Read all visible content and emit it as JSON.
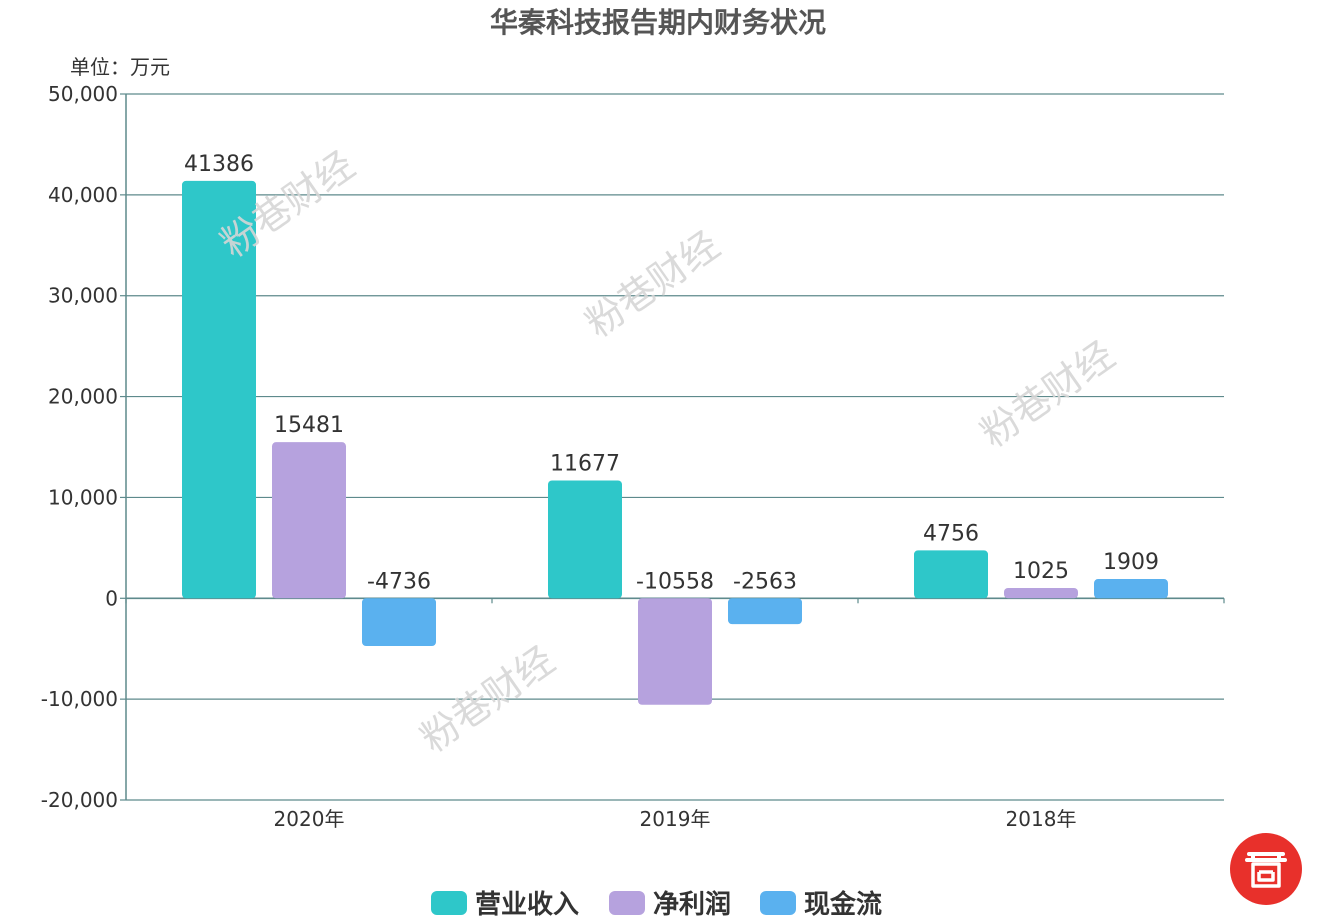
{
  "chart_data": {
    "type": "bar",
    "title": "华秦科技报告期内财务状况",
    "unit_label": "单位：万元",
    "categories": [
      "2020年",
      "2019年",
      "2018年"
    ],
    "series": [
      {
        "name": "营业收入",
        "color": "#2ec7c9",
        "values": [
          41386,
          11677,
          4756
        ]
      },
      {
        "name": "净利润",
        "color": "#b6a2de",
        "values": [
          15481,
          -10558,
          1025
        ]
      },
      {
        "name": "现金流",
        "color": "#5ab1ef",
        "values": [
          -4736,
          -2563,
          1909
        ]
      }
    ],
    "ylim": [
      -20000,
      50000
    ],
    "yticks": [
      50000,
      40000,
      30000,
      20000,
      10000,
      0,
      -10000,
      -20000
    ],
    "ytick_labels": [
      "50,000",
      "40,000",
      "30,000",
      "20,000",
      "10,000",
      "0",
      "-10,000",
      "-20,000"
    ],
    "grid": true,
    "legend_position": "bottom"
  },
  "watermark": "粉巷财经",
  "logo_icon": "red-circle-gate-logo"
}
